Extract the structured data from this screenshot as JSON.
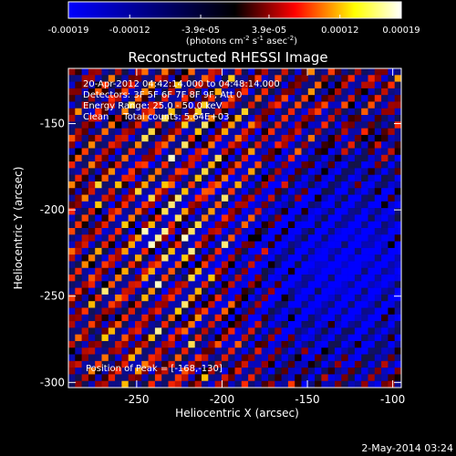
{
  "colorbar": {
    "ticks": [
      "-0.00019",
      "-0.00012",
      "-3.9e-05",
      "3.9e-05",
      "0.00012",
      "0.00019"
    ],
    "tick_values": [
      -0.00019,
      -0.00012,
      -3.9e-05,
      3.9e-05,
      0.00012,
      0.00019
    ],
    "range": [
      -0.00019,
      0.00019
    ],
    "units_parts": [
      "(photons cm",
      "-2",
      " s",
      "-1",
      " asec",
      "-2",
      ")"
    ],
    "colormap": [
      "#0000ff",
      "#000000",
      "#ff0000",
      "#ffff00",
      "#ffffff"
    ]
  },
  "chart_data": {
    "type": "heatmap",
    "title": "Reconstructed RHESSI Image",
    "xlabel": "Heliocentric X (arcsec)",
    "ylabel": "Heliocentric Y (arcsec)",
    "xlim": [
      -290,
      -95
    ],
    "ylim": [
      -303,
      -118
    ],
    "x_ticks": [
      -250,
      -200,
      -150,
      -100
    ],
    "x_tick_labels": [
      "-250",
      "-200",
      "-150",
      "-100"
    ],
    "y_ticks": [
      -300,
      -250,
      -200,
      -150
    ],
    "y_tick_labels": [
      "-300",
      "-250",
      "-200",
      "-150"
    ],
    "grid": false,
    "value_range": [
      -0.00019,
      0.00019
    ],
    "pattern": "diagonal striped fringes (lower-left to upper-right); brightest near (-200,-220); negative (blue) region at lower right",
    "peak_position": [
      -168,
      -130
    ],
    "annotations": {
      "time": "20-Apr-2012 04:42:14.000 to 04:48:14.000",
      "detectors": "Detectors: 3F 5F 6F 7F 8F 9F, Att 0",
      "energy": "Energy Range: 25.0 - 50.0 keV",
      "clean": "Clean     Total counts: 5.64E+03",
      "peak": "Position of Peak = [-168,-130]"
    }
  },
  "footer": {
    "date": "2-May-2014 03:24"
  }
}
